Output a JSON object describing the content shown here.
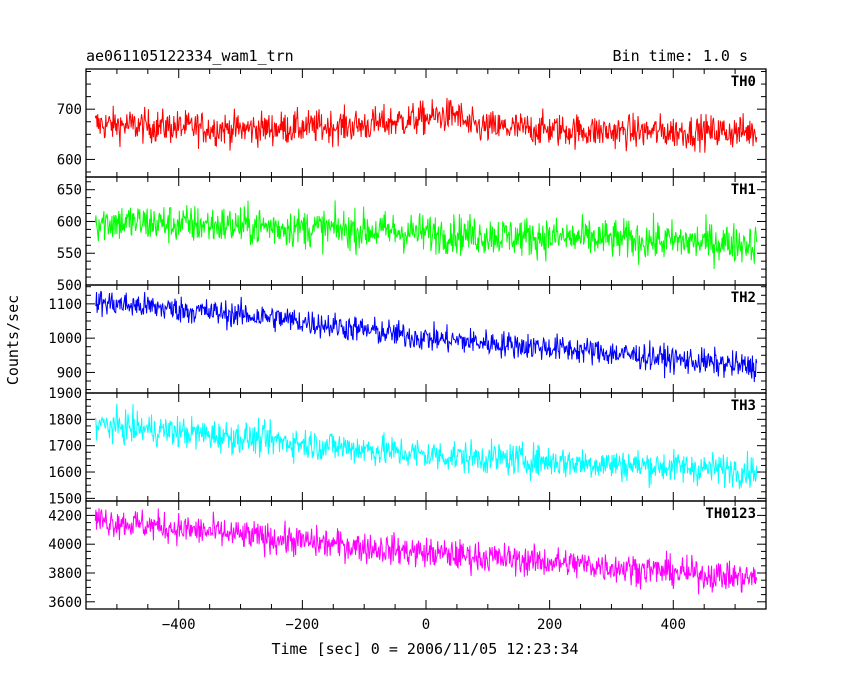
{
  "header": {
    "title": "ae061105122334_wam1_trn",
    "bin_time": "Bin time: 1.0 s"
  },
  "chart_data": {
    "type": "line",
    "xlabel": "Time [sec] 0 = 2006/11/05 12:23:34",
    "ylabel": "Counts/sec",
    "xlim": [
      -550,
      550
    ],
    "x_ticks": [
      -400,
      -200,
      0,
      200,
      400
    ],
    "x_data_range": [
      -535,
      535
    ],
    "panels": [
      {
        "name": "TH0",
        "color": "#ff0000",
        "ylim": [
          565,
          780
        ],
        "y_ticks": [
          600,
          700
        ],
        "trend_anchors": [
          [
            -535,
            670
          ],
          [
            -300,
            660
          ],
          [
            -100,
            668
          ],
          [
            50,
            690
          ],
          [
            70,
            665
          ],
          [
            300,
            655
          ],
          [
            535,
            655
          ]
        ],
        "noise_amplitude": 30
      },
      {
        "name": "TH1",
        "color": "#00ff00",
        "ylim": [
          500,
          670
        ],
        "y_ticks": [
          500,
          550,
          600,
          650
        ],
        "trend_anchors": [
          [
            -535,
            600
          ],
          [
            -200,
            590
          ],
          [
            100,
            578
          ],
          [
            535,
            565
          ]
        ],
        "noise_amplitude": 28
      },
      {
        "name": "TH2",
        "color": "#0000ff",
        "ylim": [
          840,
          1155
        ],
        "y_ticks": [
          900,
          1000,
          1100
        ],
        "trend_anchors": [
          [
            -535,
            1105
          ],
          [
            -250,
            1060
          ],
          [
            0,
            1000
          ],
          [
            250,
            965
          ],
          [
            535,
            915
          ]
        ],
        "noise_amplitude": 35
      },
      {
        "name": "TH3",
        "color": "#00ffff",
        "ylim": [
          1490,
          1900
        ],
        "y_ticks": [
          1500,
          1600,
          1700,
          1800,
          1900
        ],
        "trend_anchors": [
          [
            -535,
            1780
          ],
          [
            -250,
            1720
          ],
          [
            0,
            1665
          ],
          [
            250,
            1635
          ],
          [
            535,
            1605
          ]
        ],
        "noise_amplitude": 55
      },
      {
        "name": "TH0123",
        "color": "#ff00ff",
        "ylim": [
          3550,
          4300
        ],
        "y_ticks": [
          3600,
          3800,
          4000,
          4200
        ],
        "trend_anchors": [
          [
            -535,
            4170
          ],
          [
            -250,
            4040
          ],
          [
            0,
            3940
          ],
          [
            250,
            3860
          ],
          [
            535,
            3760
          ]
        ],
        "noise_amplitude": 95
      }
    ]
  }
}
